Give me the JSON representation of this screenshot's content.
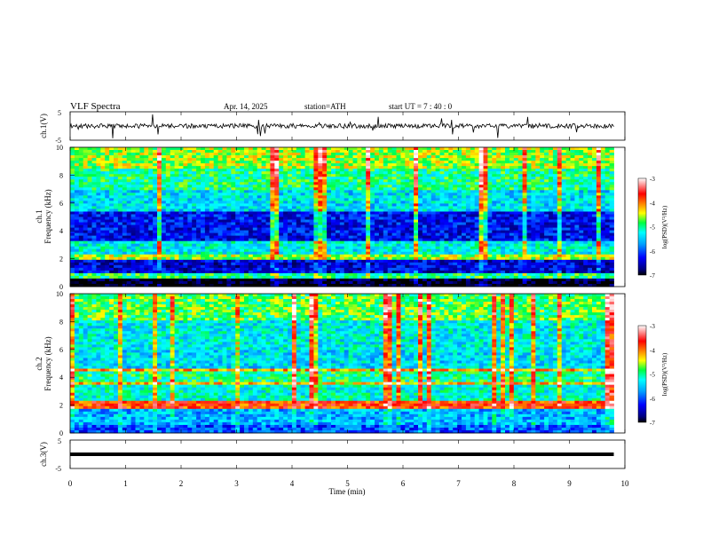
{
  "header": {
    "title": "VLF  Spectra",
    "date": "Apr. 14, 2025",
    "station": "station=ATH",
    "start_ut": "start  UT  =   7 : 40 : 0"
  },
  "chart_data": [
    {
      "type": "line",
      "ylabel": "ch.1(V)",
      "ylim": [
        -5,
        5
      ],
      "yticks": [
        "5",
        "-5"
      ],
      "note": "waveform amplitude trace, baseline near 0 V with sporadic spikes"
    },
    {
      "type": "heatmap",
      "ylabel_top": "ch.1",
      "ylabel": "Frequency  (kHz)",
      "ylim": [
        0,
        10
      ],
      "yticks": [
        "0",
        "2",
        "4",
        "6",
        "8",
        "10"
      ],
      "colorbar": {
        "label": "log(PSD)(V²/Hz)",
        "ticks": [
          "-3",
          "-4",
          "-5",
          "-6",
          "-7"
        ],
        "range": [
          -7,
          -3
        ]
      },
      "bands": [
        {
          "f": [
            0.0,
            0.5
          ],
          "level": -7.0
        },
        {
          "f": [
            0.5,
            1.0
          ],
          "level": -5.0
        },
        {
          "f": [
            1.0,
            2.0
          ],
          "level": -6.4
        },
        {
          "f": [
            2.0,
            2.3
          ],
          "level": -4.6
        },
        {
          "f": [
            2.3,
            3.3
          ],
          "level": -5.3
        },
        {
          "f": [
            3.3,
            5.3
          ],
          "level": -6.3
        },
        {
          "f": [
            5.3,
            7.0
          ],
          "level": -5.4
        },
        {
          "f": [
            7.0,
            8.5
          ],
          "level": -5.0
        },
        {
          "f": [
            8.5,
            10.0
          ],
          "level": -4.6
        }
      ]
    },
    {
      "type": "heatmap",
      "ylabel_top": "ch.2",
      "ylabel": "Frequency  (kHz)",
      "ylim": [
        0,
        10
      ],
      "yticks": [
        "0",
        "2",
        "4",
        "6",
        "8",
        "10"
      ],
      "colorbar": {
        "label": "log(PSD)(V²/Hz)",
        "ticks": [
          "-3",
          "-4",
          "-5",
          "-6",
          "-7"
        ],
        "range": [
          -7,
          -3
        ]
      },
      "bands": [
        {
          "f": [
            0.0,
            0.5
          ],
          "level": -6.0
        },
        {
          "f": [
            0.5,
            1.8
          ],
          "level": -5.6
        },
        {
          "f": [
            1.8,
            2.4
          ],
          "level": -3.8
        },
        {
          "f": [
            2.4,
            3.4
          ],
          "level": -5.2
        },
        {
          "f": [
            3.4,
            3.7
          ],
          "level": -4.3
        },
        {
          "f": [
            3.7,
            4.5
          ],
          "level": -5.0
        },
        {
          "f": [
            4.5,
            4.7
          ],
          "level": -4.2
        },
        {
          "f": [
            4.7,
            6.0
          ],
          "level": -5.4
        },
        {
          "f": [
            6.0,
            8.0
          ],
          "level": -5.3
        },
        {
          "f": [
            8.0,
            10.0
          ],
          "level": -4.8
        }
      ]
    },
    {
      "type": "line",
      "ylabel": "ch.3(V)",
      "ylim": [
        -5,
        5
      ],
      "yticks": [
        "5",
        "-5"
      ],
      "constant_level": -1
    }
  ],
  "xaxis": {
    "label": "Time  (min)",
    "ticks": [
      "0",
      "1",
      "2",
      "3",
      "4",
      "5",
      "6",
      "7",
      "8",
      "9",
      "10"
    ],
    "xlim": [
      0,
      10
    ],
    "data_end": 9.8
  },
  "colors": {
    "palette": [
      "#000080",
      "#0000ff",
      "#00a0ff",
      "#00ffff",
      "#00ff80",
      "#80ff00",
      "#ffff00",
      "#ff8000",
      "#ff0000",
      "#ffffff"
    ]
  }
}
